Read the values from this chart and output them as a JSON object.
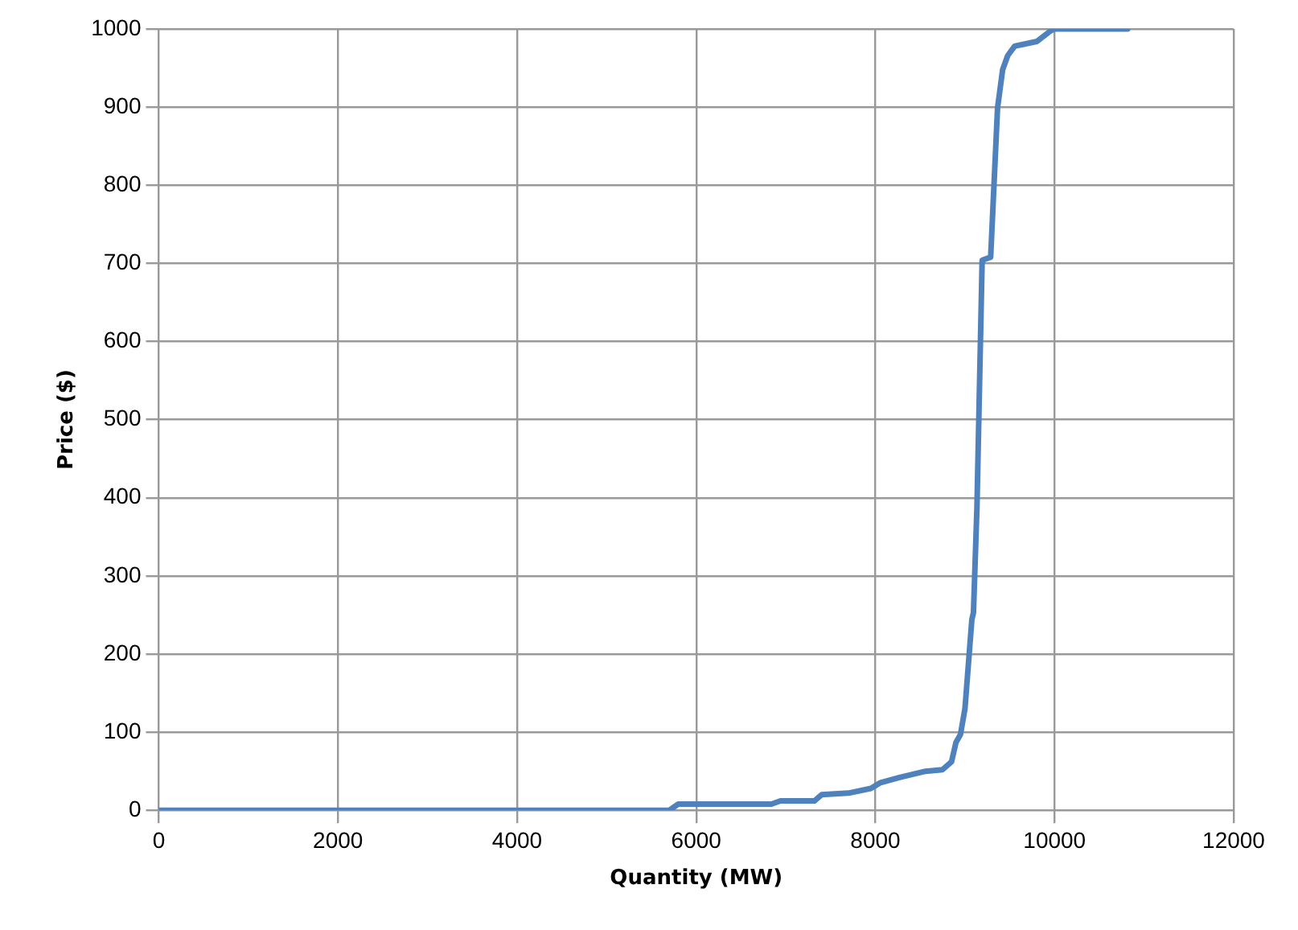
{
  "chart_data": {
    "type": "line",
    "xlabel": "Quantity (MW)",
    "ylabel": "Price ($)",
    "series": [
      {
        "color": "#4f81bd",
        "x": [
          0,
          5700,
          5800,
          6840,
          6940,
          7320,
          7400,
          7700,
          7950,
          8050,
          8270,
          8560,
          8750,
          8850,
          8900,
          8950,
          9000,
          9077,
          9095,
          9134,
          9192,
          9287,
          9364,
          9421,
          9478,
          9555,
          9803,
          9937,
          9994,
          10816
        ],
        "values": [
          0,
          0,
          8,
          8,
          12,
          12,
          20,
          22,
          28,
          35,
          42,
          50,
          52,
          62,
          87,
          97,
          130,
          244,
          253,
          388,
          704,
          708,
          899,
          948,
          966,
          978,
          984,
          996,
          1000,
          1000
        ]
      }
    ],
    "xlim": [
      0,
      12000
    ],
    "xticks": [
      0,
      2000,
      4000,
      6000,
      8000,
      10000,
      12000
    ],
    "ylim": [
      0,
      1000
    ],
    "yticks": [
      0,
      100,
      200,
      300,
      400,
      500,
      600,
      700,
      800,
      900,
      1000
    ],
    "grid": true,
    "legend": false,
    "marker": "none",
    "line_style": "solid"
  }
}
